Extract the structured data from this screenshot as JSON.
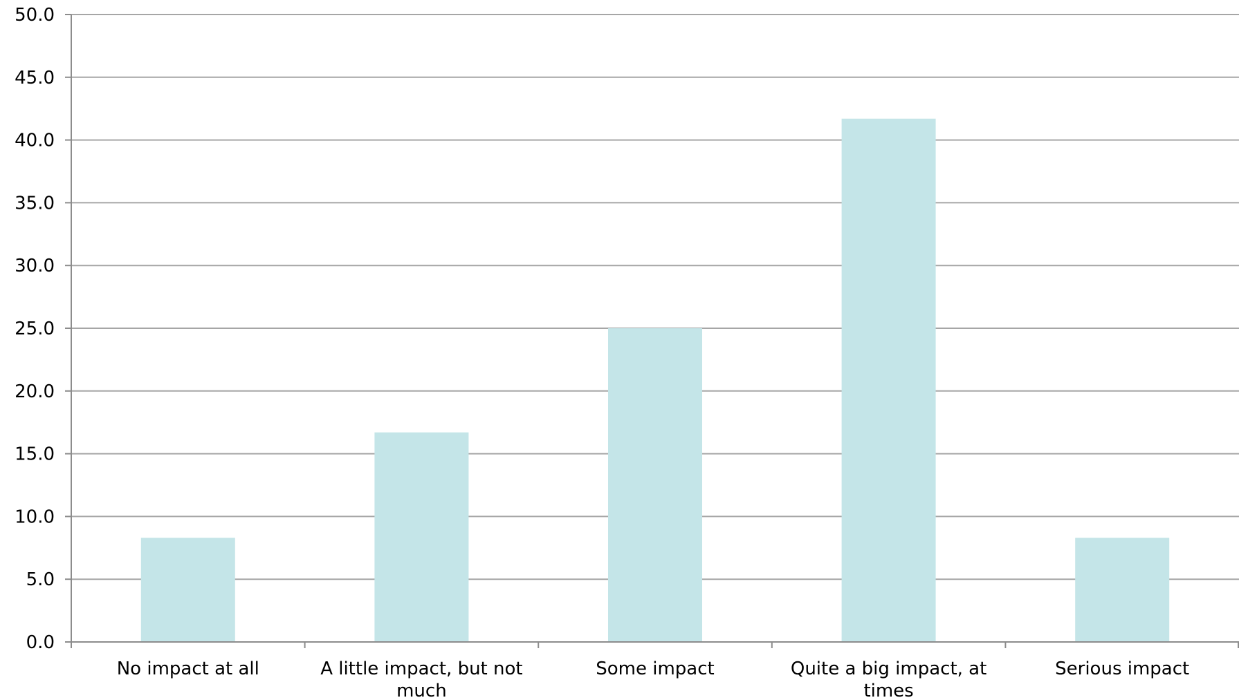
{
  "chart_data": {
    "type": "bar",
    "categories": [
      [
        "No impact at all"
      ],
      [
        "A little impact, but not",
        "much"
      ],
      [
        "Some impact"
      ],
      [
        "Quite a big impact, at",
        "times"
      ],
      [
        "Serious impact"
      ]
    ],
    "values": [
      8.3,
      16.7,
      25.0,
      41.7,
      8.3
    ],
    "ylim": [
      0,
      50
    ],
    "yticks": [
      "0.0",
      "5.0",
      "10.0",
      "15.0",
      "20.0",
      "25.0",
      "30.0",
      "35.0",
      "40.0",
      "45.0",
      "50.0"
    ],
    "grid": true,
    "legend": "none",
    "colors": {
      "bar": "#c4e5e8",
      "grid": "#a6a6a6",
      "axis": "#8c8c8c"
    }
  }
}
